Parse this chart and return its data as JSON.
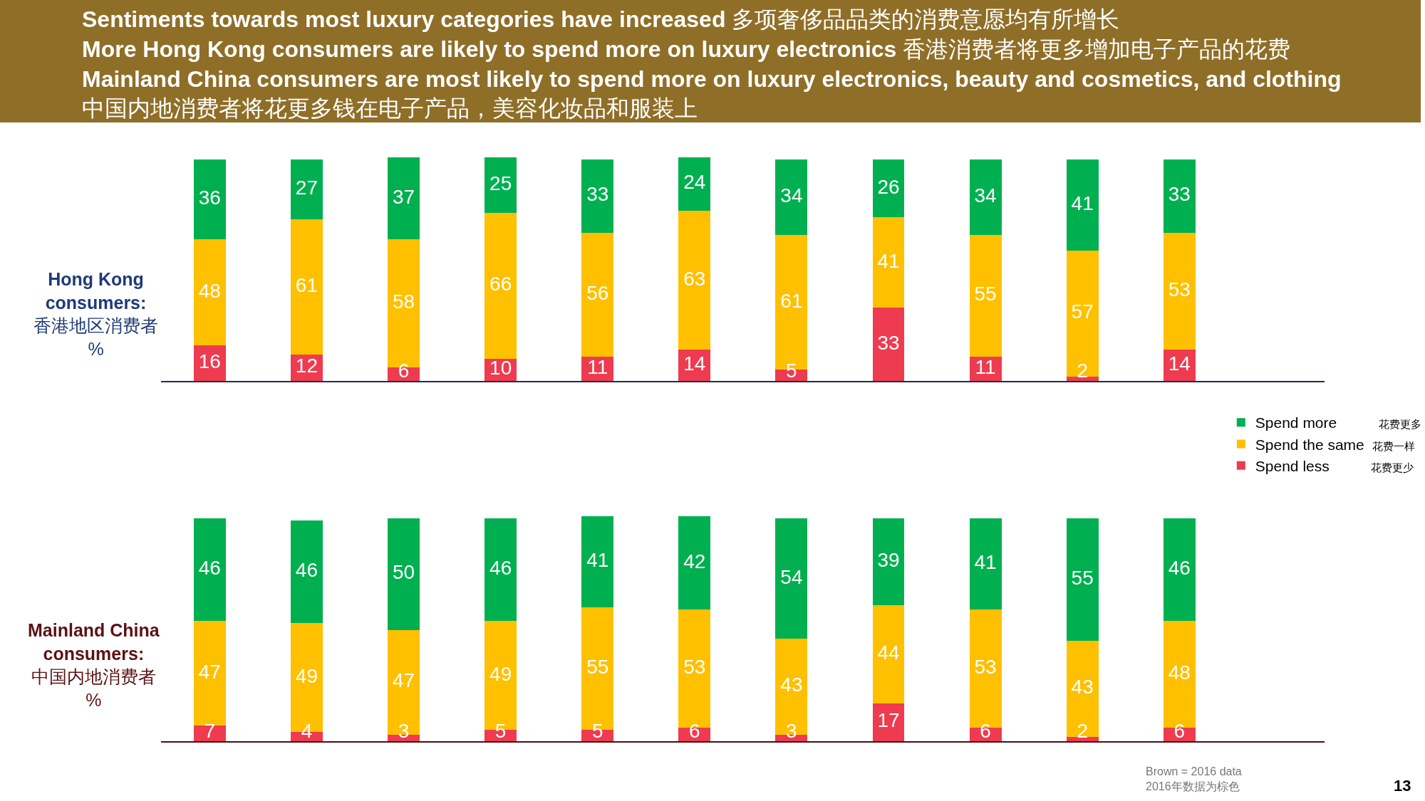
{
  "chart_data": [
    {
      "type": "bar",
      "stacked": true,
      "title": "Sentiments towards most luxury categories have increased 多项奢侈品品类的消费意愿均有所增长\nMore Hong Kong consumers are likely to spend more on luxury electronics 香港消费者将更多增加电子产品的花费\nMainland China consumers are most likely to spend more on luxury electronics, beauty and cosmetics, and clothing\n中国内地消费者将花更多钱在电子产品，美容化妆品和服装上",
      "ylabel": "Hong Kong consumers:\n香港地区消费者\n%",
      "categories": [
        null,
        null,
        null,
        null,
        null,
        null,
        null,
        null,
        null,
        null,
        null
      ],
      "series": [
        {
          "name": "Spend less 花费更少",
          "color": "#ee3b50",
          "values": [
            16,
            12,
            6,
            10,
            11,
            14,
            5,
            33,
            11,
            2,
            14
          ]
        },
        {
          "name": "Spend the same 花费一样",
          "color": "#ffc000",
          "values": [
            48,
            61,
            58,
            66,
            56,
            63,
            61,
            41,
            55,
            57,
            53
          ]
        },
        {
          "name": "Spend more 花费更多",
          "color": "#00b050",
          "values": [
            36,
            27,
            37,
            25,
            33,
            24,
            34,
            26,
            34,
            41,
            33
          ]
        }
      ],
      "ylim": [
        0,
        101
      ],
      "data_labels": true,
      "legend": "bottom right"
    },
    {
      "type": "bar",
      "stacked": true,
      "ylabel": "Mainland China consumers:\n中国内地消费者\n%",
      "categories": [
        null,
        null,
        null,
        null,
        null,
        null,
        null,
        null,
        null,
        null,
        null
      ],
      "series": [
        {
          "color": "#ee3b50",
          "values": [
            7,
            4,
            3,
            5,
            5,
            6,
            3,
            17,
            6,
            2,
            6
          ]
        },
        {
          "color": "#ffc000",
          "values": [
            47,
            49,
            47,
            49,
            55,
            53,
            43,
            44,
            53,
            43,
            48
          ]
        },
        {
          "color": "#00b050",
          "values": [
            46,
            46,
            50,
            46,
            41,
            42,
            54,
            39,
            41,
            55,
            46
          ]
        }
      ],
      "ylim": [
        0,
        101
      ],
      "data_labels": true,
      "annotations": [
        "Brown = 2016 data\n2016年数据为棕色",
        "13"
      ]
    }
  ]
}
